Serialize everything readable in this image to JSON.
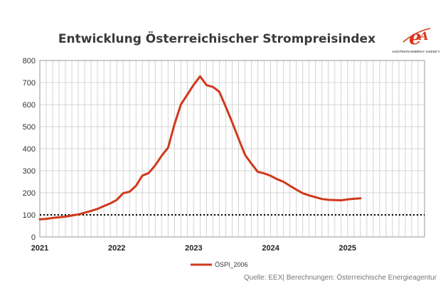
{
  "title": "Entwicklung Österreichischer Strompreisindex",
  "logo": {
    "mark": "eA",
    "text": "AUSTRIAN ENERGY AGENCY",
    "color": "#d9381e"
  },
  "source": "Quelle: EEX| Berechnungen: Österreichische Energieagentur",
  "chart_data": {
    "type": "line",
    "title": "Entwicklung Österreichischer Strompreisindex",
    "xlabel": "",
    "ylabel": "",
    "xlim": [
      2021,
      2026
    ],
    "ylim": [
      0,
      800
    ],
    "yticks": [
      0,
      100,
      200,
      300,
      400,
      500,
      600,
      700,
      800
    ],
    "xtick_labels": [
      "2021",
      "2022",
      "2023",
      "2024",
      "2025"
    ],
    "grid": true,
    "legend": "bottom-center",
    "reference_line": {
      "y": 100,
      "style": "dotted",
      "color": "#000000"
    },
    "series": [
      {
        "name": "ÖSPI_2006",
        "color": "#d0391c",
        "x": [
          2021.0,
          2021.083,
          2021.167,
          2021.25,
          2021.333,
          2021.417,
          2021.5,
          2021.583,
          2021.667,
          2021.75,
          2021.833,
          2021.917,
          2022.0,
          2022.083,
          2022.167,
          2022.25,
          2022.333,
          2022.417,
          2022.5,
          2022.583,
          2022.667,
          2022.75,
          2022.833,
          2022.917,
          2023.0,
          2023.083,
          2023.167,
          2023.25,
          2023.333,
          2023.417,
          2023.5,
          2023.583,
          2023.667,
          2023.75,
          2023.833,
          2023.917,
          2024.0,
          2024.083,
          2024.167,
          2024.25,
          2024.333,
          2024.417,
          2024.5,
          2024.583,
          2024.667,
          2024.75,
          2024.833,
          2024.917,
          2025.0,
          2025.083,
          2025.167
        ],
        "y": [
          80,
          82,
          86,
          89,
          92,
          97,
          102,
          110,
          118,
          127,
          140,
          152,
          168,
          198,
          205,
          232,
          278,
          290,
          325,
          368,
          405,
          510,
          600,
          645,
          690,
          728,
          688,
          680,
          658,
          590,
          520,
          445,
          372,
          332,
          295,
          288,
          277,
          262,
          250,
          232,
          215,
          198,
          188,
          180,
          172,
          168,
          167,
          166,
          170,
          173,
          175
        ]
      }
    ]
  }
}
